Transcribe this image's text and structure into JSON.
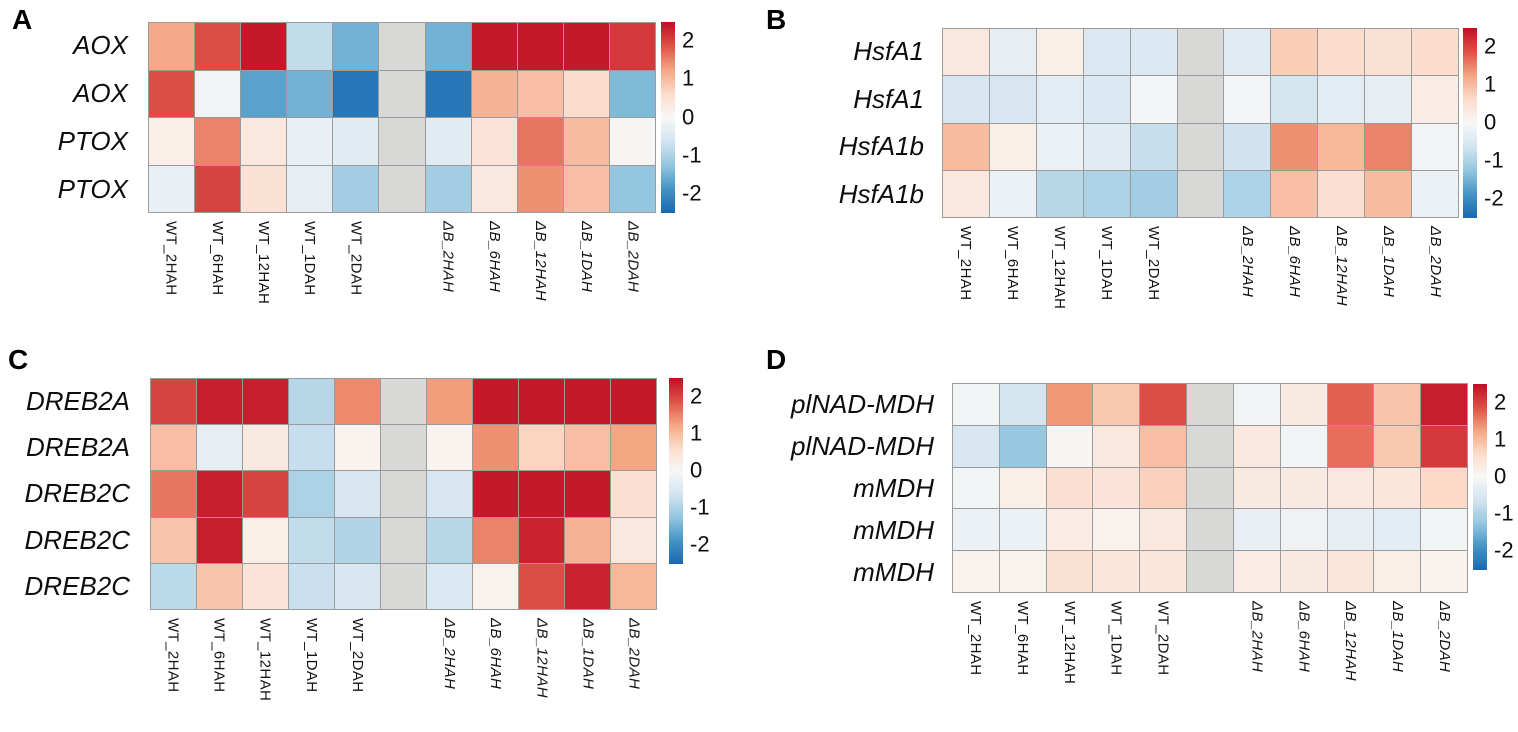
{
  "figure": {
    "background": "#ffffff"
  },
  "colorbar": {
    "vmin": -2.5,
    "vmax": 2.5,
    "na_color": "#d8d8d6",
    "anchors": [
      {
        "value": -2.5,
        "color": "#1a68b0"
      },
      {
        "value": -1.875,
        "color": "#4493c5"
      },
      {
        "value": -1.25,
        "color": "#93c6df"
      },
      {
        "value": -0.625,
        "color": "#d3e4f0"
      },
      {
        "value": 0,
        "color": "#f7f7f6"
      },
      {
        "value": 0.625,
        "color": "#fcdccb"
      },
      {
        "value": 1.25,
        "color": "#f4a582"
      },
      {
        "value": 1.875,
        "color": "#dd5145"
      },
      {
        "value": 2.5,
        "color": "#c00e26"
      }
    ],
    "ticks": [
      {
        "label": "2",
        "value": 2
      },
      {
        "label": "1",
        "value": 1
      },
      {
        "label": "0",
        "value": 0
      },
      {
        "label": "-1",
        "value": -1
      },
      {
        "label": "-2",
        "value": -2
      }
    ]
  },
  "chart_data": [
    {
      "type": "heatmap",
      "panel": "A",
      "value_range": [
        -2.5,
        2.5
      ],
      "legend_ticks": [
        "2",
        "1",
        "0",
        "-1",
        "-2"
      ],
      "columns": [
        "WT_2HAH",
        "WT_6HAH",
        "WT_12HAH",
        "WT_1DAH",
        "WT_2DAH",
        "",
        "ΔB_2HAH",
        "ΔB_6HAH",
        "ΔB_12HAH",
        "ΔB_1DAH",
        "ΔB_2DAH"
      ],
      "rows": [
        {
          "label": "AOX",
          "values": [
            1.2,
            1.9,
            2.4,
            -0.8,
            -1.5,
            null,
            -1.5,
            2.4,
            2.4,
            2.4,
            2.1
          ]
        },
        {
          "label": "AOX",
          "values": [
            1.9,
            -0.1,
            -1.7,
            -1.5,
            -2.3,
            null,
            -2.3,
            1.1,
            0.95,
            0.6,
            -1.4
          ]
        },
        {
          "label": "PTOX",
          "values": [
            0.2,
            1.5,
            0.35,
            -0.25,
            -0.4,
            null,
            -0.4,
            0.45,
            1.6,
            1.0,
            0.05
          ]
        },
        {
          "label": "PTOX",
          "values": [
            -0.25,
            2.0,
            0.5,
            -0.3,
            -1.1,
            null,
            -1.1,
            0.35,
            1.4,
            0.95,
            -1.25
          ]
        }
      ]
    },
    {
      "type": "heatmap",
      "panel": "B",
      "value_range": [
        -2.5,
        2.5
      ],
      "legend_ticks": [
        "2",
        "1",
        "0",
        "-1",
        "-2"
      ],
      "columns": [
        "WT_2HAH",
        "WT_6HAH",
        "WT_12HAH",
        "WT_1DAH",
        "WT_2DAH",
        "",
        "ΔB_2HAH",
        "ΔB_6HAH",
        "ΔB_12HAH",
        "ΔB_1DAH",
        "ΔB_2DAH"
      ],
      "rows": [
        {
          "label": "HsfA1",
          "values": [
            0.35,
            -0.3,
            0.2,
            -0.45,
            -0.45,
            null,
            -0.4,
            0.8,
            0.6,
            0.5,
            0.6
          ]
        },
        {
          "label": "HsfA1",
          "values": [
            -0.55,
            -0.55,
            -0.35,
            -0.45,
            -0.05,
            null,
            -0.05,
            -0.6,
            -0.35,
            -0.3,
            0.25
          ]
        },
        {
          "label": "HsfA1b",
          "values": [
            1.0,
            0.2,
            -0.2,
            -0.4,
            -0.75,
            null,
            -0.65,
            1.4,
            1.05,
            1.5,
            -0.1
          ]
        },
        {
          "label": "HsfA1b",
          "values": [
            0.35,
            -0.2,
            -0.9,
            -1.0,
            -1.1,
            null,
            -1.0,
            0.95,
            0.55,
            1.0,
            -0.2
          ]
        }
      ]
    },
    {
      "type": "heatmap",
      "panel": "C",
      "value_range": [
        -2.5,
        2.5
      ],
      "legend_ticks": [
        "2",
        "1",
        "0",
        "-1",
        "-2"
      ],
      "columns": [
        "WT_2HAH",
        "WT_6HAH",
        "WT_12HAH",
        "WT_1DAH",
        "WT_2DAH",
        "",
        "ΔB_2HAH",
        "ΔB_6HAH",
        "ΔB_12HAH",
        "ΔB_1DAH",
        "ΔB_2DAH"
      ],
      "rows": [
        {
          "label": "DREB2A",
          "values": [
            2.0,
            2.35,
            2.35,
            -0.9,
            1.45,
            null,
            1.3,
            2.4,
            2.4,
            2.4,
            2.4
          ]
        },
        {
          "label": "DREB2A",
          "values": [
            0.95,
            -0.3,
            0.3,
            -0.75,
            0.1,
            null,
            0.1,
            1.4,
            0.7,
            0.95,
            1.25
          ]
        },
        {
          "label": "DREB2C",
          "values": [
            1.6,
            2.35,
            2.0,
            -1.0,
            -0.55,
            null,
            -0.55,
            2.4,
            2.4,
            2.4,
            0.55
          ]
        },
        {
          "label": "DREB2C",
          "values": [
            0.9,
            2.35,
            0.2,
            -0.8,
            -0.95,
            null,
            -0.9,
            1.5,
            2.3,
            1.1,
            0.35
          ]
        },
        {
          "label": "DREB2C",
          "values": [
            -0.85,
            0.9,
            0.45,
            -0.7,
            -0.55,
            null,
            -0.5,
            0.15,
            1.9,
            2.3,
            1.05
          ]
        }
      ]
    },
    {
      "type": "heatmap",
      "panel": "D",
      "value_range": [
        -2.5,
        2.5
      ],
      "legend_ticks": [
        "2",
        "1",
        "0",
        "-1",
        "-2"
      ],
      "columns": [
        "WT_2HAH",
        "WT_6HAH",
        "WT_12HAH",
        "WT_1DAH",
        "WT_2DAH",
        "",
        "ΔB_2HAH",
        "ΔB_6HAH",
        "ΔB_12HAH",
        "ΔB_1DAH",
        "ΔB_2DAH"
      ],
      "rows": [
        {
          "label": "plNAD-MDH",
          "values": [
            -0.1,
            -0.6,
            1.35,
            0.85,
            1.9,
            null,
            -0.1,
            0.3,
            1.75,
            0.9,
            2.35
          ]
        },
        {
          "label": "plNAD-MDH",
          "values": [
            -0.55,
            -1.2,
            0.05,
            0.35,
            0.95,
            null,
            0.35,
            -0.1,
            1.65,
            0.85,
            2.1
          ]
        },
        {
          "label": "mMDH",
          "values": [
            -0.1,
            0.2,
            0.55,
            0.45,
            0.75,
            null,
            0.3,
            0.3,
            0.35,
            0.4,
            0.65
          ]
        },
        {
          "label": "mMDH",
          "values": [
            -0.2,
            -0.2,
            0.25,
            0.15,
            0.35,
            null,
            -0.25,
            -0.15,
            -0.3,
            -0.35,
            -0.1
          ]
        },
        {
          "label": "mMDH",
          "values": [
            0.15,
            0.1,
            0.5,
            0.4,
            0.4,
            null,
            0.25,
            0.3,
            0.4,
            0.2,
            0.1
          ]
        }
      ]
    }
  ]
}
